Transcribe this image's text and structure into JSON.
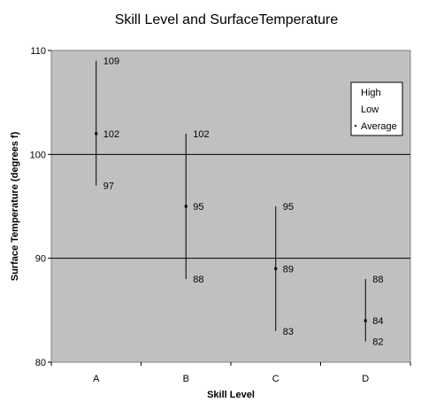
{
  "chart_data": {
    "type": "high-low-average",
    "title": "Skill Level and SurfaceTemperature",
    "xlabel": "Skill Level",
    "ylabel": "Surface Temperature (degrees f)",
    "categories": [
      "A",
      "B",
      "C",
      "D"
    ],
    "series": [
      {
        "name": "High",
        "values": [
          109,
          102,
          95,
          88
        ]
      },
      {
        "name": "Low",
        "values": [
          97,
          88,
          83,
          82
        ]
      },
      {
        "name": "Average",
        "values": [
          102,
          95,
          89,
          84
        ]
      }
    ],
    "ylim": [
      80,
      110
    ],
    "yticks": [
      80,
      90,
      100,
      110
    ],
    "gridlines": "major-horizontal",
    "legend": "top-right",
    "colors": {
      "plot_bg": "#c0c0c0",
      "line": "#000000",
      "page_bg": "#ffffff"
    }
  }
}
